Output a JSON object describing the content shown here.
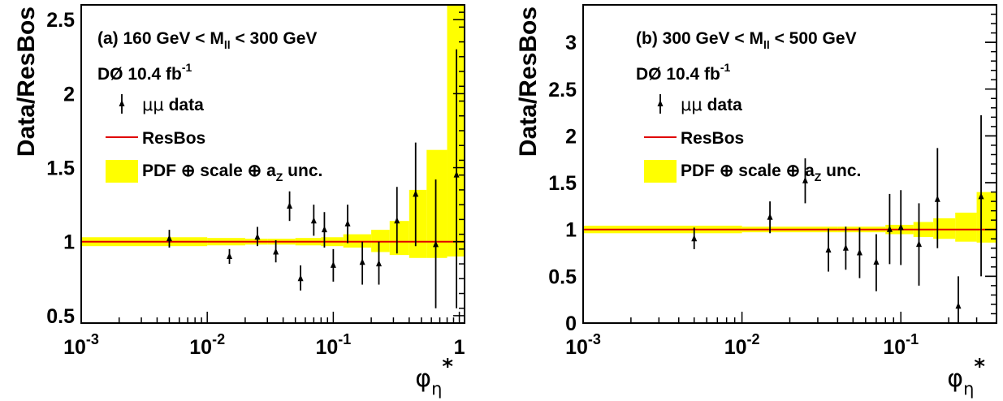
{
  "chart_data": [
    {
      "type": "scatter",
      "title": "(a) 160 GeV < M_ll < 300 GeV",
      "title_parts": {
        "prefix": "(a) 160 GeV < M",
        "sub": "ll",
        "suffix": " < 300 GeV"
      },
      "experiment": {
        "main": "DØ 10.4 fb",
        "sup": "-1"
      },
      "ylabel": "Data/ResBos",
      "xlabel": {
        "main": "φ",
        "sub": "η",
        "sup": "*"
      },
      "x_scale": "log",
      "xlim": [
        0.001,
        1.1
      ],
      "ylim": [
        0.45,
        2.6
      ],
      "x_ticks": [
        {
          "v": 0.001,
          "b": "10",
          "e": "-3"
        },
        {
          "v": 0.01,
          "b": "10",
          "e": "-2"
        },
        {
          "v": 0.1,
          "b": "10",
          "e": "-1"
        },
        {
          "v": 1,
          "b": "1",
          "e": ""
        }
      ],
      "y_ticks": [
        {
          "v": 0.5,
          "t": "0.5"
        },
        {
          "v": 1,
          "t": "1"
        },
        {
          "v": 1.5,
          "t": "1.5"
        },
        {
          "v": 2,
          "t": "2"
        },
        {
          "v": 2.5,
          "t": "2.5"
        }
      ],
      "reference_line": 1.0,
      "legend": {
        "placement": "top-left",
        "data_label": {
          "greek": "μμ",
          "rest": " data"
        },
        "line_label": "ResBos",
        "band_label": {
          "pre": "PDF ⊕ scale ⊕ a",
          "sub": "Z",
          "post": " unc."
        }
      },
      "series": [
        {
          "name": "μμ data",
          "points": [
            {
              "x": 0.005,
              "y": 1.02,
              "lo": 0.96,
              "hi": 1.08
            },
            {
              "x": 0.015,
              "y": 0.9,
              "lo": 0.85,
              "hi": 0.95
            },
            {
              "x": 0.025,
              "y": 1.03,
              "lo": 0.97,
              "hi": 1.1
            },
            {
              "x": 0.035,
              "y": 0.93,
              "lo": 0.86,
              "hi": 1.01
            },
            {
              "x": 0.045,
              "y": 1.24,
              "lo": 1.14,
              "hi": 1.34
            },
            {
              "x": 0.055,
              "y": 0.75,
              "lo": 0.67,
              "hi": 0.84
            },
            {
              "x": 0.07,
              "y": 1.14,
              "lo": 1.04,
              "hi": 1.25
            },
            {
              "x": 0.085,
              "y": 1.08,
              "lo": 0.96,
              "hi": 1.2
            },
            {
              "x": 0.1,
              "y": 0.84,
              "lo": 0.73,
              "hi": 0.95
            },
            {
              "x": 0.13,
              "y": 1.12,
              "lo": 0.99,
              "hi": 1.25
            },
            {
              "x": 0.17,
              "y": 0.86,
              "lo": 0.71,
              "hi": 1.0
            },
            {
              "x": 0.23,
              "y": 0.85,
              "lo": 0.71,
              "hi": 1.0
            },
            {
              "x": 0.32,
              "y": 1.14,
              "lo": 0.92,
              "hi": 1.37
            },
            {
              "x": 0.45,
              "y": 1.32,
              "lo": 0.97,
              "hi": 1.67
            },
            {
              "x": 0.65,
              "y": 0.98,
              "lo": 0.55,
              "hi": 1.42
            },
            {
              "x": 0.95,
              "y": 1.45,
              "lo": 0.55,
              "hi": 2.3
            }
          ]
        }
      ],
      "band": [
        {
          "x0": 0.001,
          "x1": 0.01,
          "lo": 0.97,
          "hi": 1.03
        },
        {
          "x0": 0.01,
          "x1": 0.02,
          "lo": 0.975,
          "hi": 1.025
        },
        {
          "x0": 0.02,
          "x1": 0.03,
          "lo": 0.98,
          "hi": 1.02
        },
        {
          "x0": 0.03,
          "x1": 0.05,
          "lo": 0.98,
          "hi": 1.02
        },
        {
          "x0": 0.05,
          "x1": 0.08,
          "lo": 0.975,
          "hi": 1.025
        },
        {
          "x0": 0.08,
          "x1": 0.12,
          "lo": 0.97,
          "hi": 1.03
        },
        {
          "x0": 0.12,
          "x1": 0.2,
          "lo": 0.96,
          "hi": 1.05
        },
        {
          "x0": 0.2,
          "x1": 0.28,
          "lo": 0.93,
          "hi": 1.08
        },
        {
          "x0": 0.28,
          "x1": 0.4,
          "lo": 0.91,
          "hi": 1.14
        },
        {
          "x0": 0.4,
          "x1": 0.55,
          "lo": 0.89,
          "hi": 1.35
        },
        {
          "x0": 0.55,
          "x1": 0.8,
          "lo": 0.89,
          "hi": 1.62
        },
        {
          "x0": 0.8,
          "x1": 1.1,
          "lo": 0.9,
          "hi": 2.6
        }
      ]
    },
    {
      "type": "scatter",
      "title": "(b) 300 GeV < M_ll < 500 GeV",
      "title_parts": {
        "prefix": "(b) 300 GeV < M",
        "sub": "ll",
        "suffix": " < 500 GeV"
      },
      "experiment": {
        "main": "DØ 10.4 fb",
        "sup": "-1"
      },
      "ylabel": "Data/ResBos",
      "xlabel": {
        "main": "φ",
        "sub": "η",
        "sup": "*"
      },
      "x_scale": "log",
      "xlim": [
        0.001,
        0.4
      ],
      "ylim": [
        0,
        3.4
      ],
      "x_ticks": [
        {
          "v": 0.001,
          "b": "10",
          "e": "-3"
        },
        {
          "v": 0.01,
          "b": "10",
          "e": "-2"
        },
        {
          "v": 0.1,
          "b": "10",
          "e": "-1"
        }
      ],
      "y_ticks": [
        {
          "v": 0,
          "t": "0"
        },
        {
          "v": 0.5,
          "t": "0.5"
        },
        {
          "v": 1,
          "t": "1"
        },
        {
          "v": 1.5,
          "t": "1.5"
        },
        {
          "v": 2,
          "t": "2"
        },
        {
          "v": 2.5,
          "t": "2.5"
        },
        {
          "v": 3,
          "t": "3"
        }
      ],
      "reference_line": 1.0,
      "legend": {
        "placement": "top-left",
        "data_label": {
          "greek": "μμ",
          "rest": " data"
        },
        "line_label": "ResBos",
        "band_label": {
          "pre": "PDF ⊕ scale ⊕ a",
          "sub": "Z",
          "post": " unc."
        }
      },
      "series": [
        {
          "name": "μμ data",
          "points": [
            {
              "x": 0.005,
              "y": 0.9,
              "lo": 0.79,
              "hi": 1.02
            },
            {
              "x": 0.015,
              "y": 1.13,
              "lo": 0.96,
              "hi": 1.3
            },
            {
              "x": 0.025,
              "y": 1.52,
              "lo": 1.28,
              "hi": 1.76
            },
            {
              "x": 0.035,
              "y": 0.78,
              "lo": 0.55,
              "hi": 1.01
            },
            {
              "x": 0.045,
              "y": 0.8,
              "lo": 0.57,
              "hi": 1.03
            },
            {
              "x": 0.055,
              "y": 0.75,
              "lo": 0.48,
              "hi": 1.02
            },
            {
              "x": 0.07,
              "y": 0.65,
              "lo": 0.34,
              "hi": 0.95
            },
            {
              "x": 0.085,
              "y": 1.0,
              "lo": 0.63,
              "hi": 1.38
            },
            {
              "x": 0.1,
              "y": 1.02,
              "lo": 0.62,
              "hi": 1.42
            },
            {
              "x": 0.13,
              "y": 0.84,
              "lo": 0.4,
              "hi": 1.28
            },
            {
              "x": 0.17,
              "y": 1.32,
              "lo": 0.8,
              "hi": 1.87
            },
            {
              "x": 0.23,
              "y": 0.18,
              "lo": 0.0,
              "hi": 0.5
            },
            {
              "x": 0.32,
              "y": 1.35,
              "lo": 0.5,
              "hi": 2.22
            }
          ]
        }
      ],
      "band": [
        {
          "x0": 0.001,
          "x1": 0.01,
          "lo": 0.96,
          "hi": 1.04
        },
        {
          "x0": 0.01,
          "x1": 0.04,
          "lo": 0.97,
          "hi": 1.03
        },
        {
          "x0": 0.04,
          "x1": 0.08,
          "lo": 0.97,
          "hi": 1.03
        },
        {
          "x0": 0.08,
          "x1": 0.12,
          "lo": 0.95,
          "hi": 1.05
        },
        {
          "x0": 0.12,
          "x1": 0.16,
          "lo": 0.92,
          "hi": 1.08
        },
        {
          "x0": 0.16,
          "x1": 0.22,
          "lo": 0.9,
          "hi": 1.12
        },
        {
          "x0": 0.22,
          "x1": 0.3,
          "lo": 0.87,
          "hi": 1.18
        },
        {
          "x0": 0.3,
          "x1": 0.4,
          "lo": 0.86,
          "hi": 1.4
        }
      ]
    }
  ]
}
